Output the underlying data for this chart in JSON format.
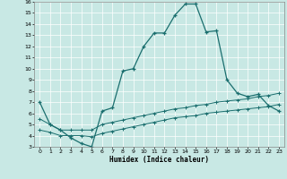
{
  "xlabel": "Humidex (Indice chaleur)",
  "xlim": [
    -0.5,
    23.5
  ],
  "ylim": [
    3,
    16
  ],
  "xticks": [
    0,
    1,
    2,
    3,
    4,
    5,
    6,
    7,
    8,
    9,
    10,
    11,
    12,
    13,
    14,
    15,
    16,
    17,
    18,
    19,
    20,
    21,
    22,
    23
  ],
  "yticks": [
    3,
    4,
    5,
    6,
    7,
    8,
    9,
    10,
    11,
    12,
    13,
    14,
    15,
    16
  ],
  "bg_color": "#c8e8e4",
  "line_color": "#1a6e6e",
  "line1_x": [
    0,
    1,
    2,
    3,
    4,
    5,
    6,
    7,
    8,
    9,
    10,
    11,
    12,
    13,
    14,
    15,
    16,
    17,
    18,
    19,
    20,
    21,
    22,
    23
  ],
  "line1_y": [
    7,
    5,
    4.5,
    3.8,
    3.3,
    3.0,
    6.2,
    6.5,
    9.8,
    10.0,
    12.0,
    13.2,
    13.2,
    14.8,
    15.8,
    15.8,
    13.3,
    13.4,
    9.0,
    7.8,
    7.5,
    7.7,
    6.7,
    6.2
  ],
  "line2_x": [
    0,
    1,
    2,
    3,
    4,
    5,
    6,
    7,
    8,
    9,
    10,
    11,
    12,
    13,
    14,
    15,
    16,
    17,
    18,
    19,
    20,
    21,
    22,
    23
  ],
  "line2_y": [
    5.5,
    5.0,
    4.5,
    4.5,
    4.5,
    4.5,
    5.0,
    5.2,
    5.4,
    5.6,
    5.8,
    6.0,
    6.2,
    6.4,
    6.5,
    6.7,
    6.8,
    7.0,
    7.1,
    7.2,
    7.3,
    7.5,
    7.6,
    7.8
  ],
  "line3_x": [
    0,
    1,
    2,
    3,
    4,
    5,
    6,
    7,
    8,
    9,
    10,
    11,
    12,
    13,
    14,
    15,
    16,
    17,
    18,
    19,
    20,
    21,
    22,
    23
  ],
  "line3_y": [
    4.5,
    4.3,
    4.0,
    4.0,
    4.0,
    3.9,
    4.2,
    4.4,
    4.6,
    4.8,
    5.0,
    5.2,
    5.4,
    5.6,
    5.7,
    5.8,
    6.0,
    6.1,
    6.2,
    6.3,
    6.4,
    6.5,
    6.6,
    6.8
  ]
}
